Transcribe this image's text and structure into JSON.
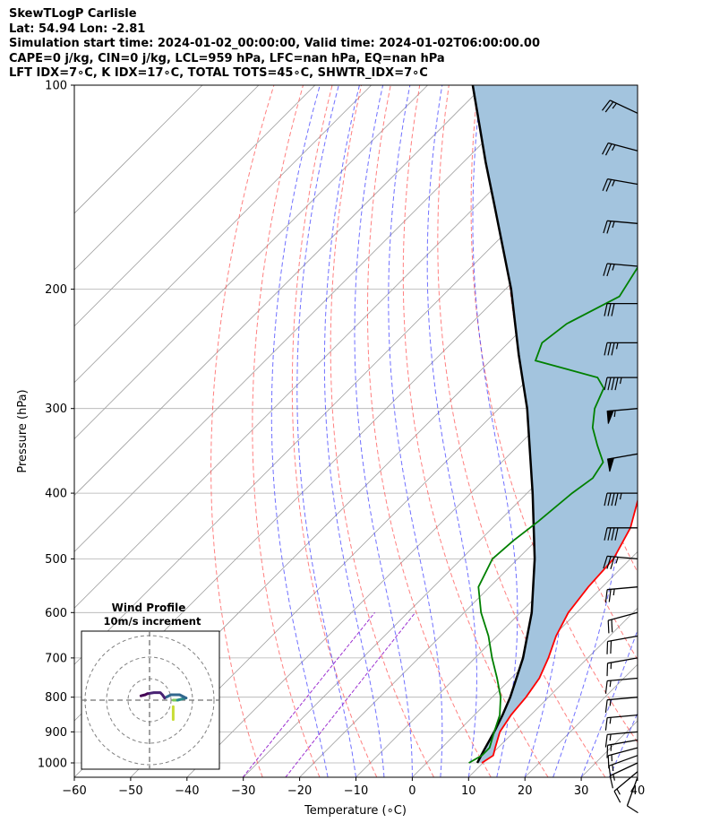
{
  "header": {
    "line1": "SkewTLogP Carlisle",
    "line2": "Lat: 54.94   Lon: -2.81",
    "line3": "Simulation start time: 2024-01-02_00:00:00, Valid time: 2024-01-02T06:00:00.00",
    "line4": "CAPE=0 j/kg, CIN=0 j/kg, LCL=959 hPa, LFC=nan hPa, EQ=nan hPa",
    "line5": "LFT IDX=7∘C, K IDX=17∘C, TOTAL TOTS=45∘C, SHWTR_IDX=7∘C"
  },
  "chart_data": {
    "type": "line",
    "xlabel": "Temperature (∘C)",
    "ylabel": "Pressure (hPa)",
    "xlim": [
      -60,
      40
    ],
    "ylim": [
      1050,
      100
    ],
    "y_scale": "log",
    "skew": "45deg",
    "x_ticks": [
      "−60",
      "−50",
      "−40",
      "−30",
      "−20",
      "−10",
      "0",
      "10",
      "20",
      "30",
      "40"
    ],
    "x_tick_values": [
      -60,
      -50,
      -40,
      -30,
      -20,
      -10,
      0,
      10,
      20,
      30,
      40
    ],
    "y_ticks": [
      "100",
      "200",
      "300",
      "400",
      "500",
      "600",
      "700",
      "800",
      "900",
      "1000"
    ],
    "y_tick_values": [
      100,
      200,
      300,
      400,
      500,
      600,
      700,
      800,
      900,
      1000
    ],
    "grid": true,
    "background_lines": {
      "isotherms_color": "#9e9e9e",
      "dry_adiabats_color": "#ff5555",
      "moist_adiabats_color": "#4040ff",
      "mixing_ratio_color": "#9b2fd0"
    },
    "series": [
      {
        "role": "temperature",
        "color": "#ff0000",
        "points": [
          [
            1000,
            9.8
          ],
          [
            975,
            10.5
          ],
          [
            950,
            9.5
          ],
          [
            900,
            7.5
          ],
          [
            850,
            6.5
          ],
          [
            800,
            6.0
          ],
          [
            750,
            5.0
          ],
          [
            700,
            3.0
          ],
          [
            650,
            0.5
          ],
          [
            600,
            -1.5
          ],
          [
            550,
            -2.5
          ],
          [
            500,
            -3.0
          ],
          [
            450,
            -5.5
          ],
          [
            400,
            -10.0
          ],
          [
            350,
            -17.0
          ],
          [
            320,
            -21.5
          ],
          [
            300,
            -24.0
          ],
          [
            280,
            -28.0
          ],
          [
            260,
            -32.0
          ],
          [
            250,
            -34.5
          ],
          [
            230,
            -37.0
          ],
          [
            200,
            -42.0
          ],
          [
            180,
            -46.0
          ],
          [
            165,
            -49.5
          ],
          [
            150,
            -53.0
          ],
          [
            140,
            -56.0
          ],
          [
            125,
            -59.0
          ],
          [
            115,
            -60.0
          ],
          [
            100,
            -61.0
          ]
        ]
      },
      {
        "role": "dewpoint",
        "color": "#008000",
        "points": [
          [
            1000,
            7.5
          ],
          [
            975,
            8.5
          ],
          [
            950,
            8.5
          ],
          [
            900,
            6.5
          ],
          [
            850,
            4.5
          ],
          [
            800,
            1.5
          ],
          [
            750,
            -2.5
          ],
          [
            700,
            -7.0
          ],
          [
            650,
            -11.5
          ],
          [
            600,
            -17.0
          ],
          [
            550,
            -22.0
          ],
          [
            500,
            -24.5
          ],
          [
            470,
            -24.0
          ],
          [
            440,
            -23.0
          ],
          [
            400,
            -22.0
          ],
          [
            380,
            -21.0
          ],
          [
            360,
            -22.0
          ],
          [
            340,
            -26.0
          ],
          [
            320,
            -30.0
          ],
          [
            300,
            -33.0
          ],
          [
            280,
            -35.0
          ],
          [
            270,
            -38.0
          ],
          [
            255,
            -52.0
          ],
          [
            240,
            -54.0
          ],
          [
            225,
            -53.0
          ],
          [
            205,
            -48.5
          ],
          [
            180,
            -51.0
          ],
          [
            165,
            -52.5
          ],
          [
            150,
            -54.0
          ],
          [
            130,
            -56.5
          ],
          [
            100,
            -62.0
          ]
        ]
      },
      {
        "role": "parcel",
        "color": "#000000",
        "points": [
          [
            1000,
            9.0
          ],
          [
            960,
            8.0
          ],
          [
            900,
            6.5
          ],
          [
            850,
            5.0
          ],
          [
            800,
            3.2
          ],
          [
            700,
            -1.5
          ],
          [
            600,
            -8.0
          ],
          [
            500,
            -17.0
          ],
          [
            400,
            -29.0
          ],
          [
            300,
            -45.0
          ],
          [
            250,
            -56.0
          ],
          [
            200,
            -69.0
          ],
          [
            150,
            -87.0
          ],
          [
            130,
            -96.0
          ],
          [
            100,
            -112.0
          ]
        ]
      }
    ],
    "shaded_area": {
      "between": [
        "temperature",
        "parcel"
      ],
      "color": "#a3c4de"
    },
    "wind_barbs": [
      {
        "p": 1050,
        "speed": 10,
        "dir": 200
      },
      {
        "p": 1030,
        "speed": 15,
        "dir": 230
      },
      {
        "p": 1000,
        "speed": 15,
        "dir": 245
      },
      {
        "p": 975,
        "speed": 15,
        "dir": 250
      },
      {
        "p": 950,
        "speed": 15,
        "dir": 255
      },
      {
        "p": 925,
        "speed": 15,
        "dir": 260
      },
      {
        "p": 900,
        "speed": 15,
        "dir": 265
      },
      {
        "p": 850,
        "speed": 15,
        "dir": 265
      },
      {
        "p": 800,
        "speed": 15,
        "dir": 265
      },
      {
        "p": 750,
        "speed": 15,
        "dir": 265
      },
      {
        "p": 700,
        "speed": 15,
        "dir": 260
      },
      {
        "p": 650,
        "speed": 20,
        "dir": 260
      },
      {
        "p": 600,
        "speed": 20,
        "dir": 255
      },
      {
        "p": 550,
        "speed": 25,
        "dir": 265
      },
      {
        "p": 500,
        "speed": 35,
        "dir": 275
      },
      {
        "p": 450,
        "speed": 40,
        "dir": 270
      },
      {
        "p": 400,
        "speed": 45,
        "dir": 270
      },
      {
        "p": 350,
        "speed": 50,
        "dir": 260
      },
      {
        "p": 300,
        "speed": 55,
        "dir": 265
      },
      {
        "p": 270,
        "speed": 45,
        "dir": 270
      },
      {
        "p": 240,
        "speed": 35,
        "dir": 270
      },
      {
        "p": 210,
        "speed": 30,
        "dir": 270
      },
      {
        "p": 185,
        "speed": 25,
        "dir": 275
      },
      {
        "p": 160,
        "speed": 25,
        "dir": 275
      },
      {
        "p": 140,
        "speed": 25,
        "dir": 280
      },
      {
        "p": 125,
        "speed": 25,
        "dir": 285
      },
      {
        "p": 110,
        "speed": 25,
        "dir": 295
      }
    ],
    "hodograph": {
      "title": "Wind Profile",
      "subtitle": "10m/s increment",
      "rings": [
        10,
        20,
        30
      ],
      "segments": [
        {
          "color": "#c8dd35",
          "points": [
            [
              11,
              -3
            ],
            [
              11,
              -6
            ],
            [
              11,
              -9
            ]
          ]
        },
        {
          "color": "#79c956",
          "points": [
            [
              11,
              0
            ],
            [
              12,
              0
            ],
            [
              13,
              0
            ]
          ]
        },
        {
          "color": "#2a8a8a",
          "points": [
            [
              13,
              0
            ],
            [
              17,
              1
            ]
          ]
        },
        {
          "color": "#31678e",
          "points": [
            [
              17,
              1
            ],
            [
              14,
              2.5
            ],
            [
              10,
              2.5
            ],
            [
              7,
              1
            ]
          ]
        },
        {
          "color": "#482173",
          "points": [
            [
              7,
              1
            ],
            [
              6,
              2.5
            ],
            [
              5,
              3.5
            ],
            [
              2,
              3.5
            ],
            [
              -1,
              3
            ]
          ]
        },
        {
          "color": "#440154",
          "points": [
            [
              -1,
              3
            ],
            [
              -2,
              2.5
            ],
            [
              -4,
              2
            ]
          ]
        }
      ]
    }
  }
}
